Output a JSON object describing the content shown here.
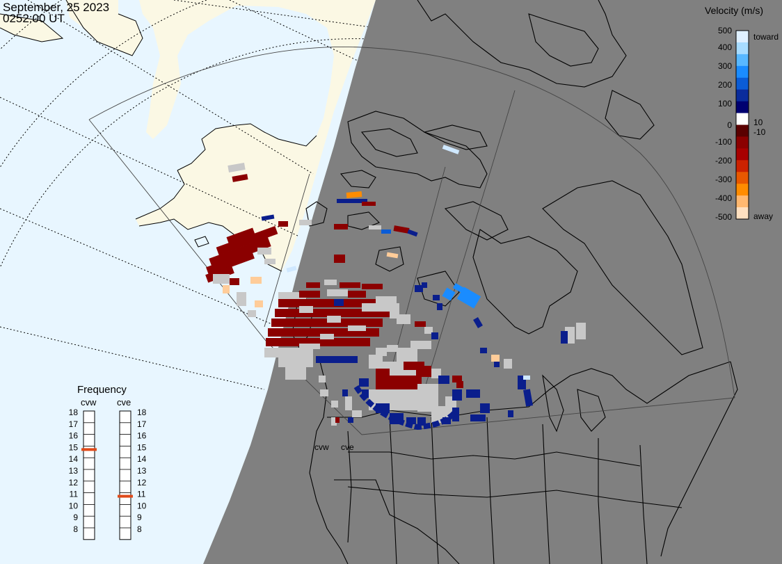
{
  "header": {
    "date": "September, 25 2023",
    "time": "0252:00 UT"
  },
  "colorbar": {
    "title": "Velocity (m/s)",
    "ticks": [
      "500",
      "400",
      "300",
      "200",
      "100",
      "10",
      "0",
      "-10",
      "-100",
      "-200",
      "-300",
      "-400",
      "-500"
    ],
    "toward_label": "toward",
    "away_label": "away",
    "colors": [
      "#dff0ff",
      "#a8dcff",
      "#58b8ff",
      "#1a8cff",
      "#0a5cd6",
      "#0a2c9c",
      "#000070",
      "#ffffff",
      "#5a0000",
      "#8b0000",
      "#a80000",
      "#cc2200",
      "#e85800",
      "#ff8c00",
      "#ffb870",
      "#ffe0c0"
    ]
  },
  "frequency_panel": {
    "title": "Frequency",
    "radars": [
      {
        "name": "cvw",
        "selected_mhz": 15
      },
      {
        "name": "cve",
        "selected_mhz": 11
      }
    ],
    "scale_labels": [
      "18",
      "17",
      "16",
      "15",
      "14",
      "13",
      "12",
      "11",
      "10",
      "9",
      "8"
    ],
    "marker_color": "#e04a1a"
  },
  "radar_site_labels": [
    "cvw",
    "cve"
  ],
  "map_colors": {
    "ocean": "#e8f6ff",
    "land_day": "#fbf8e4",
    "night": "#808080",
    "ground_scatter": "#c8c8c8"
  }
}
